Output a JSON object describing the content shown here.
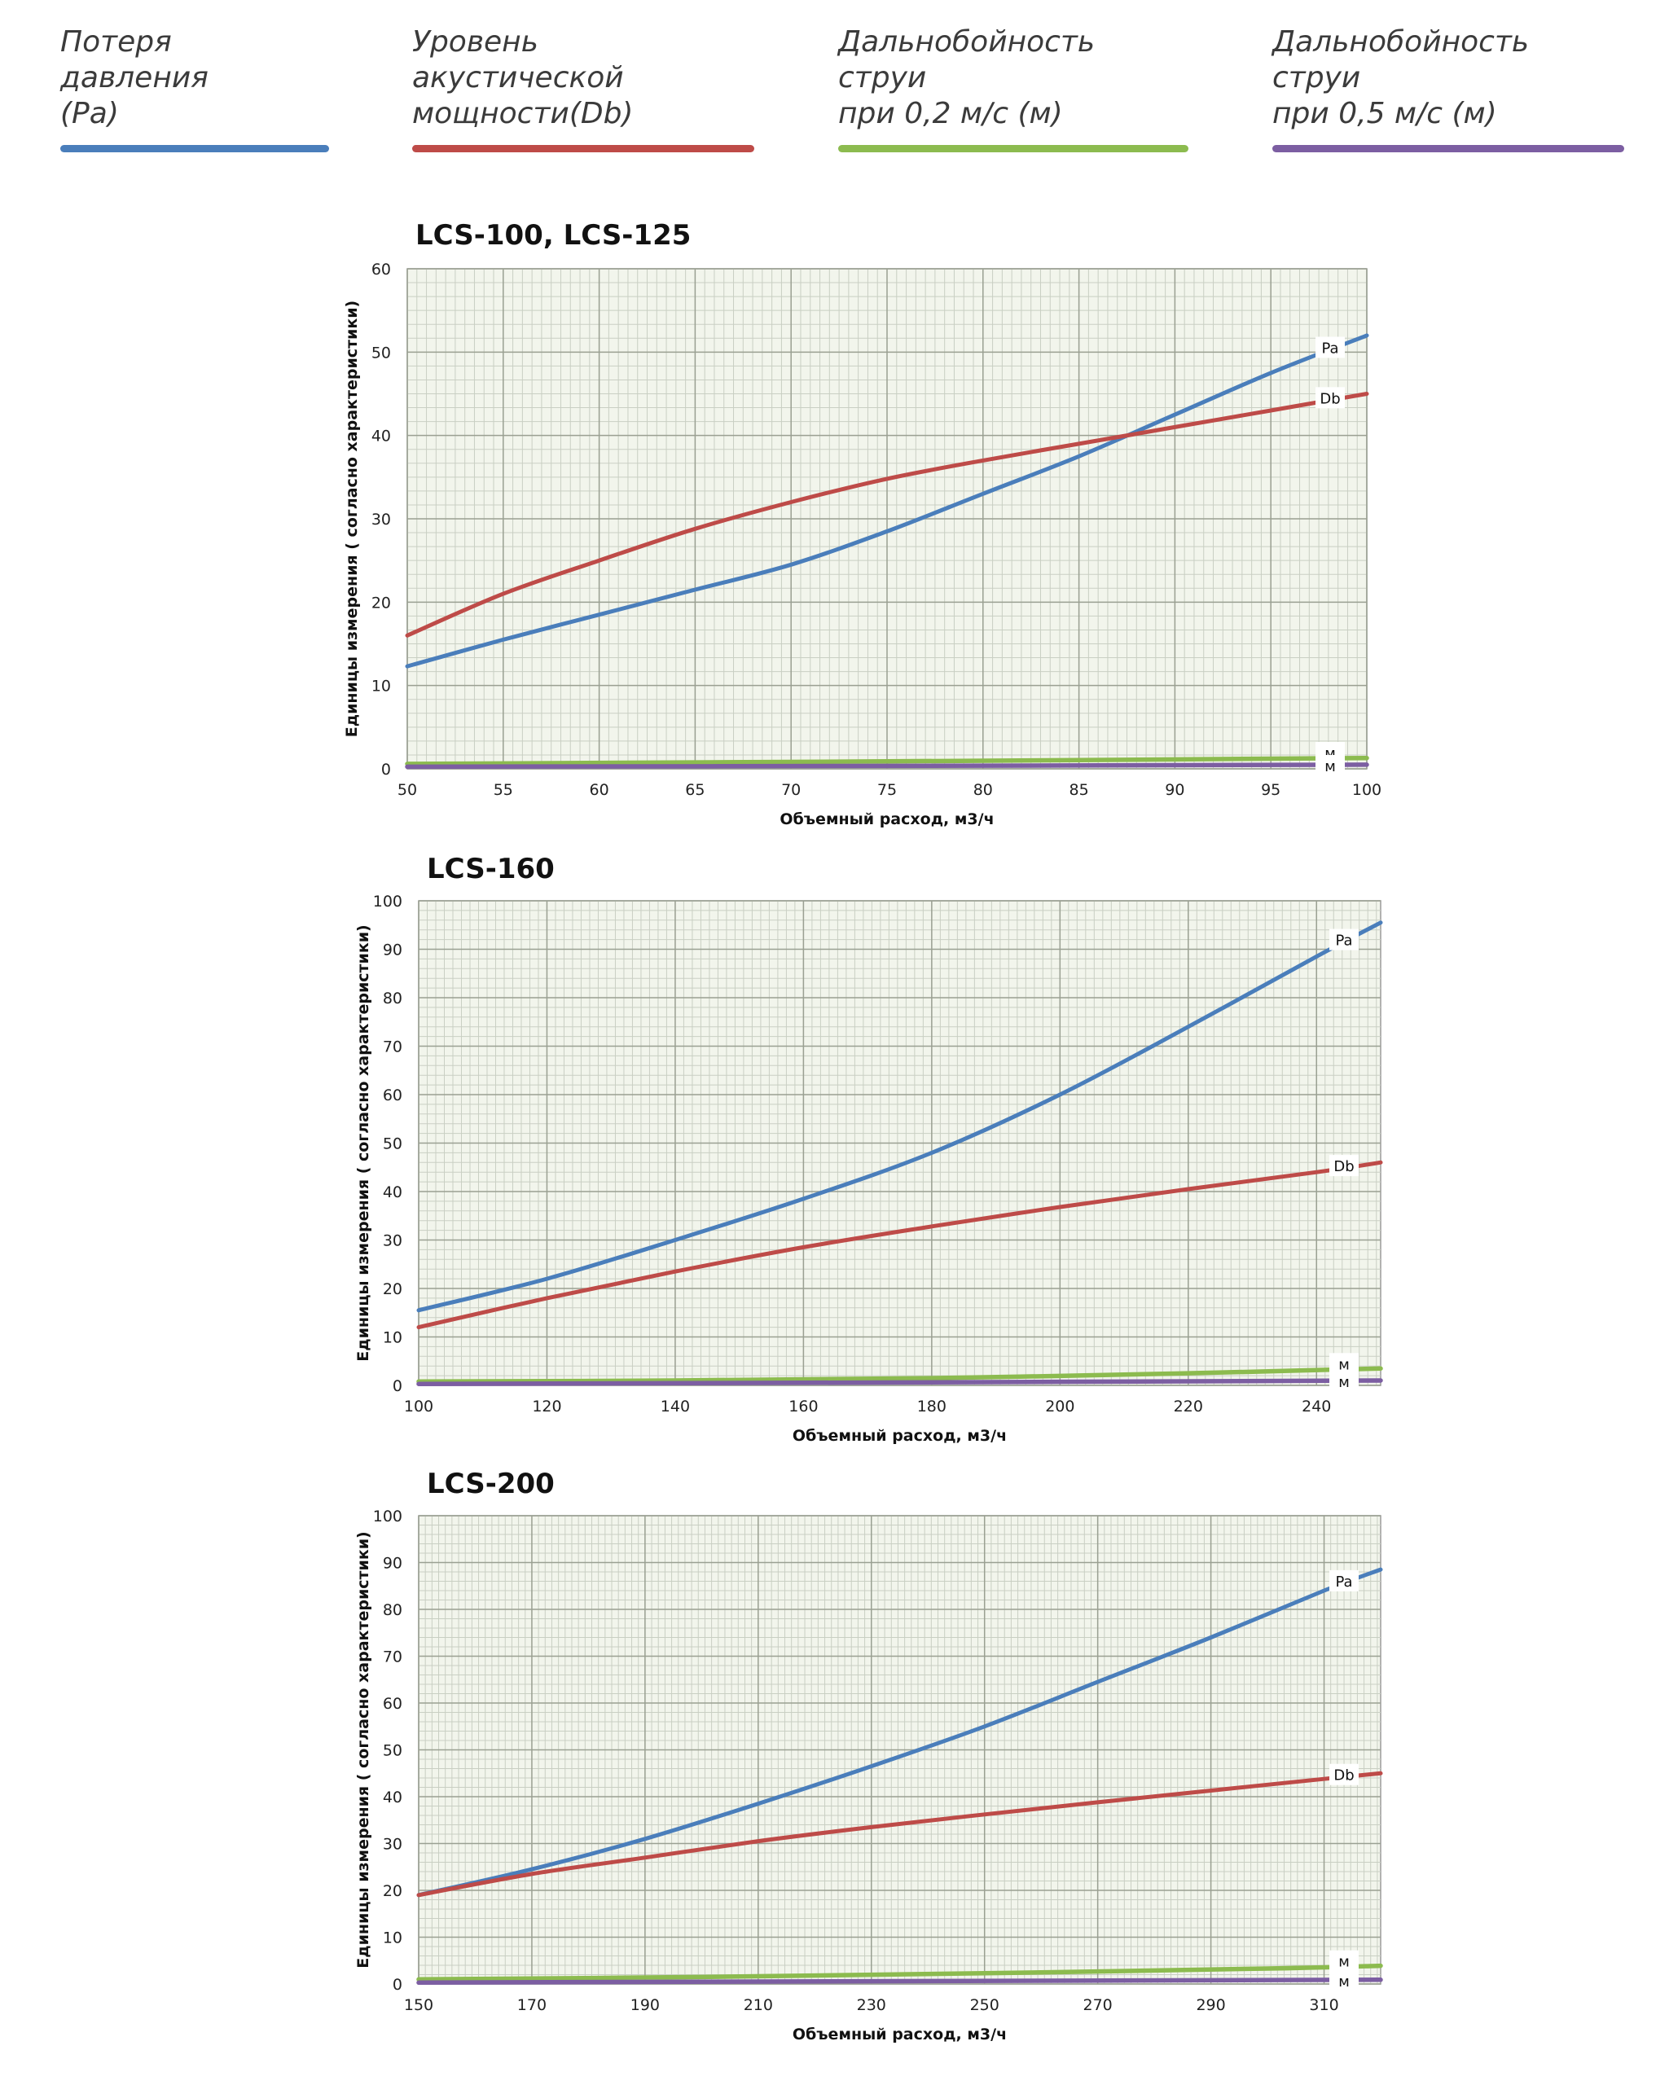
{
  "legend": [
    {
      "label": "Потеря давления\n(Pa)",
      "color": "#4a7ebb"
    },
    {
      "label": "Уровень акустической\nмощности(Db)",
      "color": "#be4b48"
    },
    {
      "label": "Дальнобойность струи\nпри 0,2 м/с (м)",
      "color": "#8cbb4f"
    },
    {
      "label": "Дальнобойность струи\nпри 0,5 м/с (м)",
      "color": "#7c5ea2"
    }
  ],
  "chart_data": [
    {
      "type": "line",
      "title": "LCS-100, LCS-125",
      "xlabel": "Объемный расход, м3/ч",
      "ylabel": "Единицы измерения ( согласно характеристики)",
      "xlim": [
        50,
        100
      ],
      "ylim": [
        0,
        60
      ],
      "xticks": [
        50,
        55,
        60,
        65,
        70,
        75,
        80,
        85,
        90,
        95,
        100
      ],
      "yticks": [
        0,
        10,
        20,
        30,
        40,
        50,
        60
      ],
      "grid": true,
      "series": [
        {
          "name": "Pa",
          "color": "#4a7ebb",
          "x": [
            50,
            55,
            60,
            65,
            70,
            75,
            80,
            85,
            90,
            95,
            100
          ],
          "y": [
            12.3,
            15.5,
            18.5,
            21.5,
            24.5,
            28.5,
            33.0,
            37.5,
            42.5,
            47.5,
            52.0
          ]
        },
        {
          "name": "Db",
          "color": "#be4b48",
          "x": [
            50,
            55,
            60,
            65,
            70,
            75,
            80,
            85,
            90,
            95,
            100
          ],
          "y": [
            16.0,
            21.0,
            25.0,
            28.8,
            32.0,
            34.8,
            37.0,
            39.0,
            41.0,
            43.0,
            45.0
          ]
        },
        {
          "name": "м",
          "color": "#8cbb4f",
          "x": [
            50,
            75,
            100
          ],
          "y": [
            0.6,
            0.9,
            1.3
          ]
        },
        {
          "name": "м",
          "color": "#7c5ea2",
          "x": [
            50,
            75,
            100
          ],
          "y": [
            0.25,
            0.35,
            0.5
          ]
        }
      ]
    },
    {
      "type": "line",
      "title": "LCS-160",
      "xlabel": "Объемный расход, м3/ч",
      "ylabel": "Единицы измерения ( согласно характеристики)",
      "xlim": [
        100,
        250
      ],
      "ylim": [
        0,
        100
      ],
      "xticks": [
        100,
        120,
        140,
        160,
        180,
        200,
        220,
        240
      ],
      "yticks": [
        0,
        10,
        20,
        30,
        40,
        50,
        60,
        70,
        80,
        90,
        100
      ],
      "grid": true,
      "series": [
        {
          "name": "Pa",
          "color": "#4a7ebb",
          "x": [
            100,
            120,
            140,
            160,
            180,
            200,
            220,
            240,
            250
          ],
          "y": [
            15.5,
            22.0,
            30.0,
            38.5,
            48.0,
            60.0,
            74.0,
            88.5,
            95.5
          ]
        },
        {
          "name": "Db",
          "color": "#be4b48",
          "x": [
            100,
            120,
            140,
            160,
            180,
            200,
            220,
            240,
            250
          ],
          "y": [
            12.0,
            18.0,
            23.5,
            28.5,
            32.8,
            36.8,
            40.5,
            44.0,
            46.0
          ]
        },
        {
          "name": "м",
          "color": "#8cbb4f",
          "x": [
            100,
            140,
            180,
            220,
            250
          ],
          "y": [
            0.8,
            1.0,
            1.5,
            2.5,
            3.5
          ]
        },
        {
          "name": "м",
          "color": "#7c5ea2",
          "x": [
            100,
            175,
            250
          ],
          "y": [
            0.3,
            0.6,
            1.0
          ]
        }
      ]
    },
    {
      "type": "line",
      "title": "LCS-200",
      "xlabel": "Объемный расход, м3/ч",
      "ylabel": "Единицы измерения ( согласно характеристики)",
      "xlim": [
        150,
        320
      ],
      "ylim": [
        0,
        100
      ],
      "xticks": [
        150,
        170,
        190,
        210,
        230,
        250,
        270,
        290,
        310
      ],
      "yticks": [
        0,
        10,
        20,
        30,
        40,
        50,
        60,
        70,
        80,
        90,
        100
      ],
      "grid": true,
      "series": [
        {
          "name": "Pa",
          "color": "#4a7ebb",
          "x": [
            150,
            170,
            190,
            210,
            230,
            250,
            270,
            290,
            310,
            320
          ],
          "y": [
            19.0,
            24.5,
            31.0,
            38.5,
            46.5,
            55.0,
            64.5,
            74.0,
            84.0,
            88.5
          ]
        },
        {
          "name": "Db",
          "color": "#be4b48",
          "x": [
            150,
            170,
            190,
            210,
            230,
            250,
            270,
            290,
            310,
            320
          ],
          "y": [
            19.0,
            23.5,
            27.0,
            30.5,
            33.5,
            36.2,
            38.8,
            41.3,
            43.8,
            45.0
          ]
        },
        {
          "name": "м",
          "color": "#8cbb4f",
          "x": [
            150,
            200,
            250,
            300,
            320
          ],
          "y": [
            1.0,
            1.5,
            2.3,
            3.3,
            3.9
          ]
        },
        {
          "name": "м",
          "color": "#7c5ea2",
          "x": [
            150,
            235,
            320
          ],
          "y": [
            0.3,
            0.6,
            0.9
          ]
        }
      ]
    }
  ]
}
